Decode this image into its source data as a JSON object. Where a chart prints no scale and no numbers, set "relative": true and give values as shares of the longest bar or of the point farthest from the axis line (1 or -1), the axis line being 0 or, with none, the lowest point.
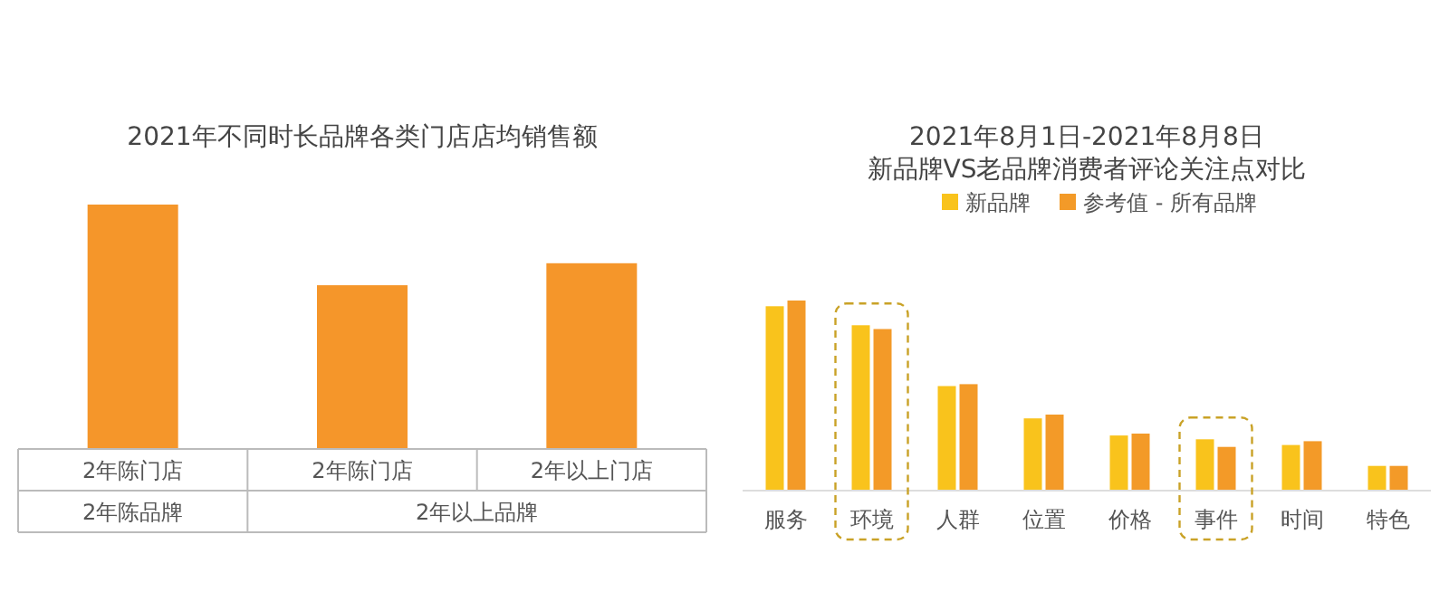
{
  "chart_data": [
    {
      "type": "bar",
      "title": "2021年不同时长品牌各类门店店均销售额",
      "relative": true,
      "categories": [
        "2年陈门店",
        "2年陈门店",
        "2年以上门店"
      ],
      "series": [
        {
          "color": "#f5962a",
          "values": [
            1,
            0.67,
            0.76
          ]
        }
      ],
      "annotations": [
        "2年陈品牌",
        "2年以上品牌"
      ]
    },
    {
      "type": "bar",
      "title": "2021年8月1日-2021年8月8日",
      "subtitle": "新品牌VS老品牌消费者评论关注点对比",
      "relative": true,
      "legend": "top",
      "categories": [
        "服务",
        "环境",
        "人群",
        "位置",
        "价格",
        "事件",
        "时间",
        "特色"
      ],
      "series": [
        {
          "name": "新品牌",
          "color": "#f9c31c",
          "values": [
            0.97,
            0.87,
            0.55,
            0.38,
            0.29,
            0.27,
            0.24,
            0.13
          ]
        },
        {
          "name": "参考值 - 所有品牌",
          "color": "#f39a28",
          "values": [
            1,
            0.85,
            0.56,
            0.4,
            0.3,
            0.23,
            0.26,
            0.13
          ]
        }
      ]
    }
  ]
}
